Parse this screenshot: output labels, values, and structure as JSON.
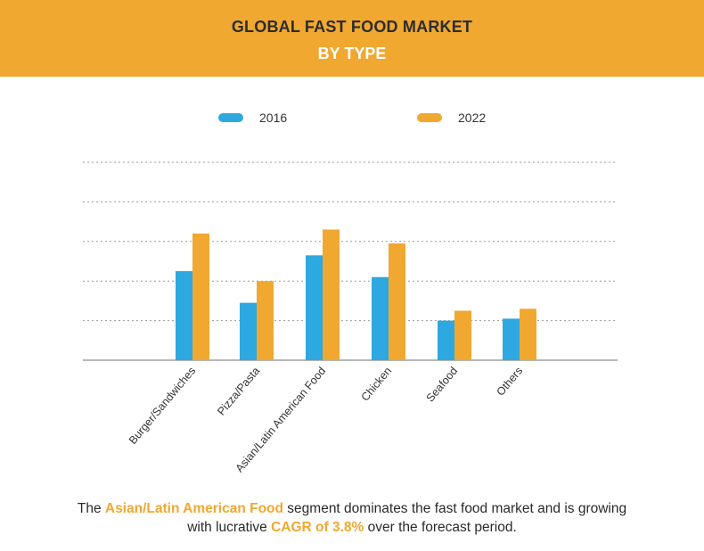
{
  "header": {
    "title_line1": "GLOBAL FAST FOOD MARKET",
    "title_line2": "BY TYPE"
  },
  "colors": {
    "series_2016": "#2ea8e0",
    "series_2022": "#f0a830",
    "header_bg": "#f0a830",
    "grid": "#9a9a9a"
  },
  "chart_data": {
    "type": "bar",
    "title": "",
    "xlabel": "",
    "ylabel": "",
    "ylim": [
      0,
      100
    ],
    "grid": true,
    "legend_position": "top",
    "categories": [
      "Burger/Sandwiches",
      "Pizza/Pasta",
      "Asian/Latin American Food",
      "Chicken",
      "Seafood",
      "Others"
    ],
    "series": [
      {
        "name": "2016",
        "values": [
          45,
          29,
          53,
          42,
          20,
          21
        ]
      },
      {
        "name": "2022",
        "values": [
          64,
          40,
          66,
          59,
          25,
          26
        ]
      }
    ]
  },
  "footer": {
    "pre": "The ",
    "highlight1": "Asian/Latin American Food",
    "mid": " segment dominates the fast food market and is growing",
    "line2_pre": "with lucrative ",
    "highlight2": "CAGR of 3.8%",
    "line2_post": " over the forecast period."
  }
}
